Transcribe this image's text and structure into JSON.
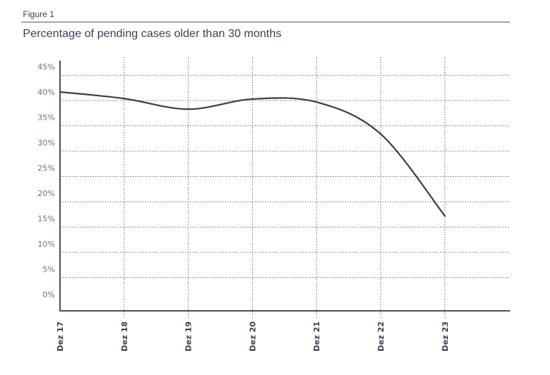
{
  "figure_label": "Figure 1",
  "chart_data": {
    "type": "line",
    "title": "Percentage of pending cases older than 30 months",
    "xlabel": "",
    "ylabel": "",
    "categories": [
      "Dez 17",
      "Dez 18",
      "Dez 19",
      "Dez 20",
      "Dez 21",
      "Dez 22",
      "Dez 23"
    ],
    "values": [
      40.0,
      38.7,
      36.6,
      38.6,
      38.0,
      31.7,
      15.5
    ],
    "y_unit": "%",
    "yticks": [
      "0%",
      "5%",
      "10%",
      "15%",
      "20%",
      "25%",
      "30%",
      "35%",
      "40%",
      "45%"
    ],
    "ylim": [
      0,
      45
    ],
    "grid": true,
    "line_color": "#38404c",
    "smooth": true
  }
}
